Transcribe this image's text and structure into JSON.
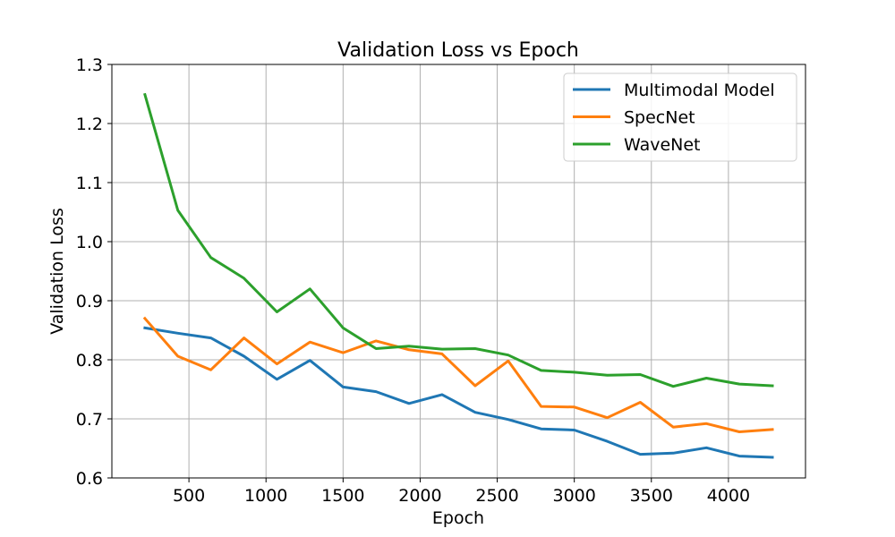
{
  "chart_data": {
    "type": "line",
    "title": "Validation Loss vs Epoch",
    "xlabel": "Epoch",
    "ylabel": "Validation Loss",
    "xlim": [
      0,
      4500
    ],
    "ylim": [
      0.6,
      1.3
    ],
    "xticks": [
      500,
      1000,
      1500,
      2000,
      2500,
      3000,
      3500,
      4000
    ],
    "yticks": [
      0.6,
      0.7,
      0.8,
      0.9,
      1.0,
      1.1,
      1.2,
      1.3
    ],
    "ytick_labels": [
      "0.6",
      "0.7",
      "0.8",
      "0.9",
      "1.0",
      "1.1",
      "1.2",
      "1.3"
    ],
    "grid": true,
    "legend_position": "top-right",
    "x": [
      214,
      428,
      642,
      857,
      1071,
      1285,
      1500,
      1714,
      1928,
      2142,
      2357,
      2571,
      2785,
      3000,
      3214,
      3428,
      3642,
      3857,
      4071,
      4285
    ],
    "series": [
      {
        "name": "Multimodal Model",
        "color": "#1f77b4",
        "values": [
          0.854,
          0.845,
          0.837,
          0.806,
          0.767,
          0.799,
          0.754,
          0.746,
          0.726,
          0.741,
          0.711,
          0.699,
          0.683,
          0.681,
          0.662,
          0.64,
          0.642,
          0.651,
          0.637,
          0.635
        ]
      },
      {
        "name": "SpecNet",
        "color": "#ff7f0e",
        "values": [
          0.87,
          0.806,
          0.783,
          0.837,
          0.793,
          0.83,
          0.812,
          0.832,
          0.817,
          0.81,
          0.756,
          0.798,
          0.721,
          0.72,
          0.702,
          0.728,
          0.686,
          0.692,
          0.678,
          0.682
        ]
      },
      {
        "name": "WaveNet",
        "color": "#2ca02c",
        "values": [
          1.249,
          1.053,
          0.973,
          0.938,
          0.881,
          0.92,
          0.854,
          0.819,
          0.823,
          0.818,
          0.819,
          0.808,
          0.782,
          0.779,
          0.774,
          0.775,
          0.755,
          0.769,
          0.759,
          0.756
        ]
      }
    ]
  }
}
